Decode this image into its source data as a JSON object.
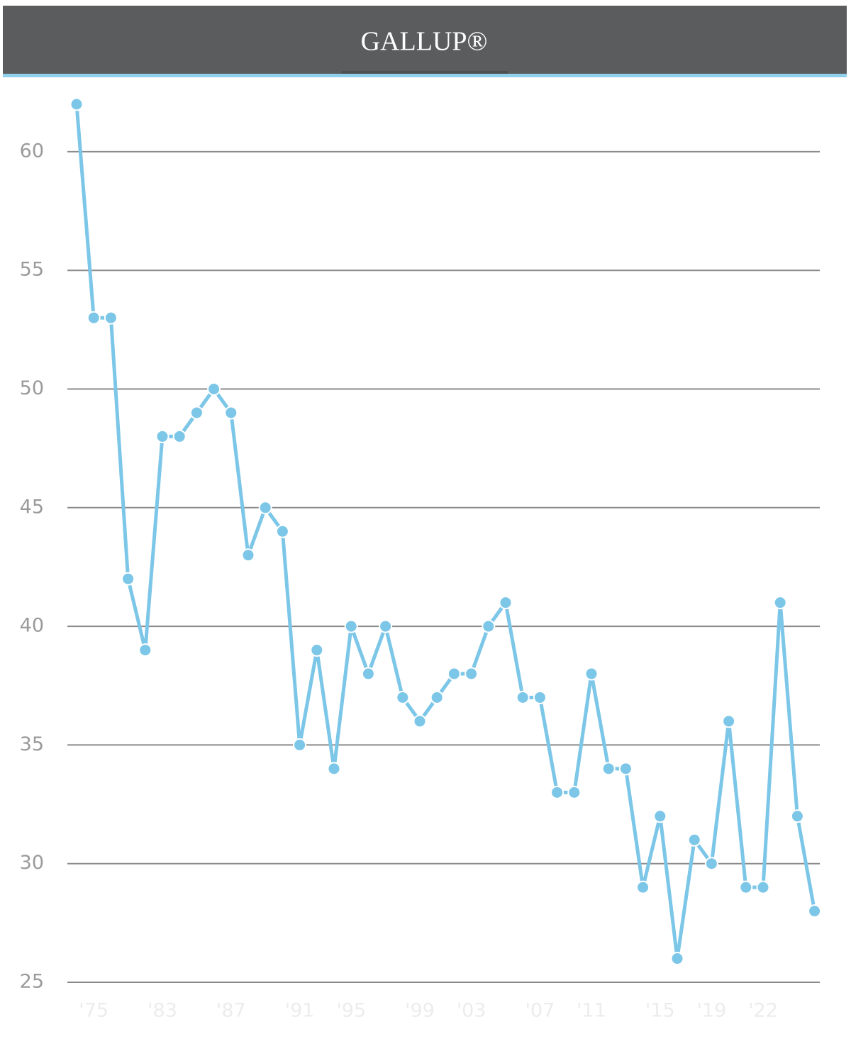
{
  "chart_data": {
    "type": "line",
    "title": "GALLUP®",
    "categories": [
      null,
      "'75",
      null,
      null,
      null,
      "'83",
      null,
      null,
      null,
      "'87",
      null,
      null,
      null,
      "'91",
      null,
      null,
      "'95",
      null,
      null,
      null,
      "'99",
      null,
      null,
      "'03",
      null,
      null,
      null,
      "'07",
      null,
      null,
      "'11",
      null,
      null,
      null,
      "'15",
      null,
      null,
      "'19",
      null,
      null,
      "'22",
      null,
      null,
      null
    ],
    "series": [
      {
        "name": null,
        "color": "#7cc6e8",
        "values": [
          62,
          53,
          53,
          42,
          39,
          48,
          48,
          49,
          50,
          49,
          43,
          45,
          44,
          35,
          39,
          34,
          40,
          38,
          40,
          37,
          36,
          37,
          38,
          38,
          40,
          41,
          37,
          37,
          33,
          33,
          38,
          34,
          34,
          29,
          32,
          26,
          31,
          30,
          36,
          29,
          29,
          41,
          32,
          28
        ]
      }
    ],
    "ylim": [
      25,
      62
    ],
    "yticks": [
      25,
      30,
      35,
      40,
      45,
      50,
      55,
      60
    ],
    "grid": true
  }
}
